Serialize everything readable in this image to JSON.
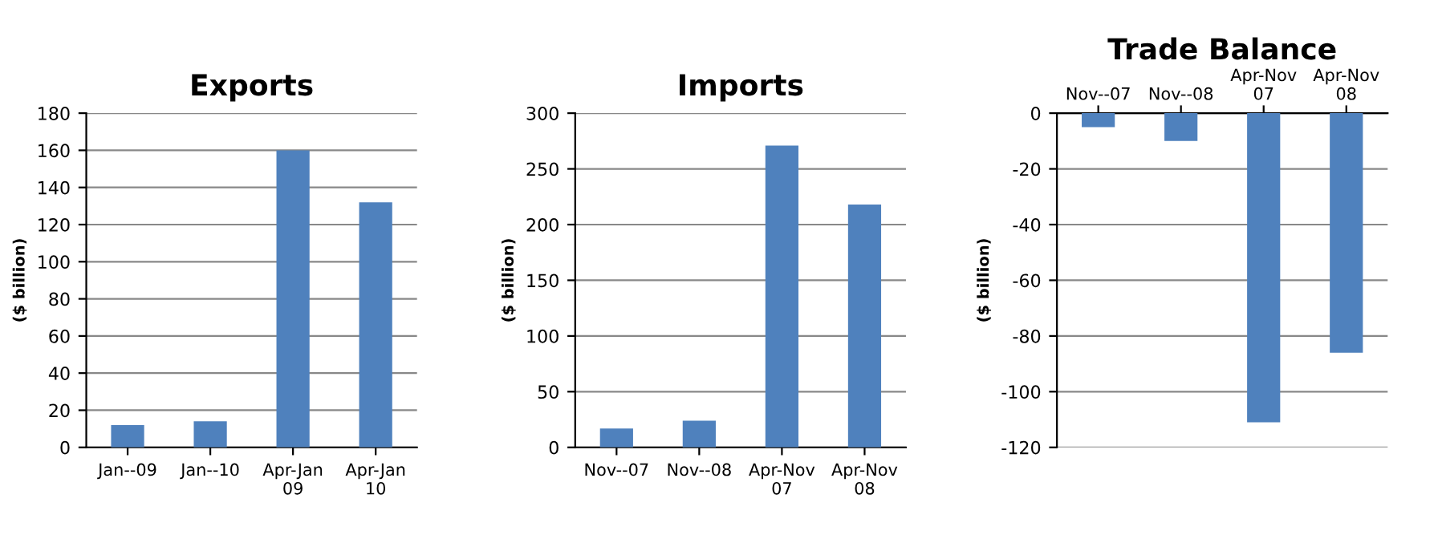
{
  "chart_data": [
    {
      "type": "bar",
      "title": "Exports",
      "ylabel": "($ billion)",
      "categories": [
        "Jan--09",
        "Jan--10",
        "Apr-Jan\n09",
        "Apr-Jan\n10"
      ],
      "values": [
        12,
        14,
        160,
        132
      ],
      "color": "#4f81bd",
      "ylim": [
        0,
        180
      ],
      "yticks": [
        0,
        20,
        40,
        60,
        80,
        100,
        120,
        140,
        160,
        180
      ],
      "grid": "y"
    },
    {
      "type": "bar",
      "title": "Imports",
      "ylabel": "($ billion)",
      "categories": [
        "Nov--07",
        "Nov--08",
        "Apr-Nov\n07",
        "Apr-Nov\n08"
      ],
      "values": [
        17,
        24,
        271,
        218
      ],
      "color": "#4f81bd",
      "ylim": [
        0,
        300
      ],
      "yticks": [
        0,
        50,
        100,
        150,
        200,
        250,
        300
      ],
      "grid": "y"
    },
    {
      "type": "bar",
      "title": "Trade Balance",
      "ylabel": "($ billion)",
      "categories": [
        "Nov--07",
        "Nov--08",
        "Apr-Nov\n07",
        "Apr-Nov\n08"
      ],
      "values": [
        -5,
        -10,
        -111,
        -86
      ],
      "color": "#4f81bd",
      "ylim": [
        -120,
        0
      ],
      "yticks": [
        -120,
        -100,
        -80,
        -60,
        -40,
        -20,
        0
      ],
      "grid": "y"
    }
  ]
}
